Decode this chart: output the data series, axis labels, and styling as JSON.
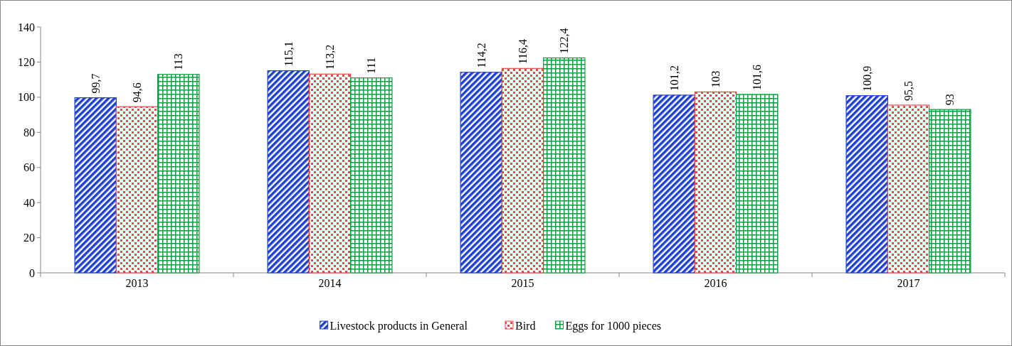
{
  "chart_data": {
    "type": "bar",
    "categories": [
      "2013",
      "2014",
      "2015",
      "2016",
      "2017"
    ],
    "series": [
      {
        "name": "Livestock products in General",
        "color": "#1f3fcf",
        "values": [
          99.7,
          115.1,
          114.2,
          101.2,
          100.9
        ],
        "value_labels": [
          "99,7",
          "115,1",
          "114,2",
          "101,2",
          "100,9"
        ]
      },
      {
        "name": "Bird",
        "color": "#ff4040",
        "values": [
          94.6,
          113.2,
          116.4,
          103,
          95.5
        ],
        "value_labels": [
          "94,6",
          "113,2",
          "116,4",
          "103",
          "95,5"
        ]
      },
      {
        "name": "Eggs for 1000 pieces",
        "color": "#00a040",
        "values": [
          113,
          111,
          122.4,
          101.6,
          93
        ],
        "value_labels": [
          "113",
          "111",
          "122,4",
          "101,6",
          "93"
        ]
      }
    ],
    "ylim": [
      0,
      140
    ],
    "yticks": [
      0,
      20,
      40,
      60,
      80,
      100,
      120,
      140
    ],
    "grid": false,
    "legend": "bottom"
  }
}
